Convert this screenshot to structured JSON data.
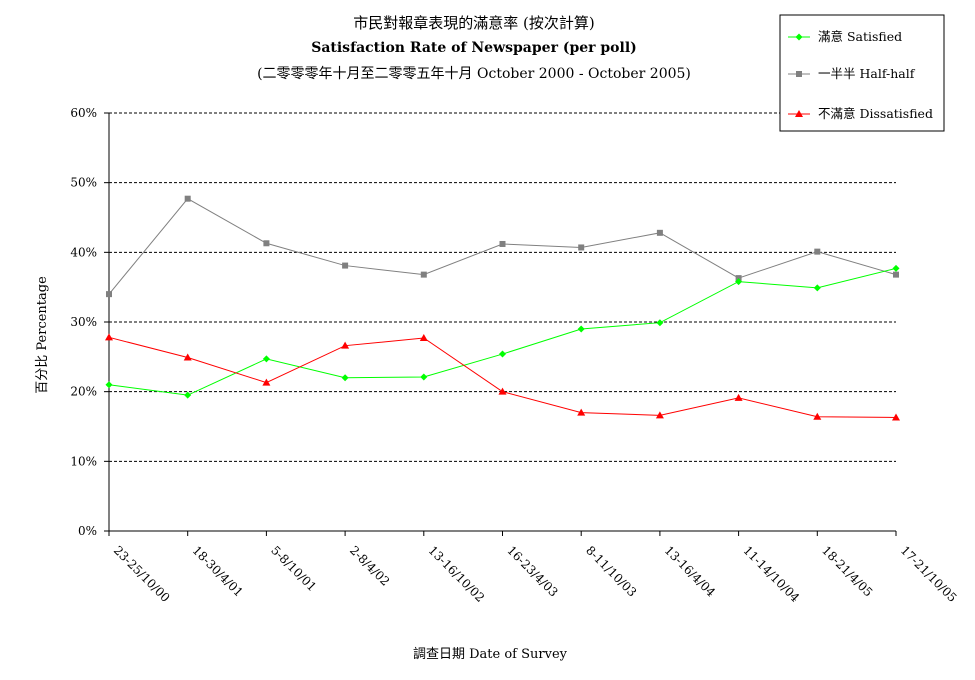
{
  "chart_data": {
    "type": "line",
    "title": "市民對報章表現的滿意率 (按次計算)",
    "subtitle": "Satisfaction Rate of Newspaper (per poll)",
    "subtitle2": "(二零零零年十月至二零零五年十月 October 2000 - October 2005)",
    "xlabel": "調查日期 Date of Survey",
    "ylabel": "百分比 Percentage",
    "ylim": [
      0,
      60
    ],
    "yticks": [
      "0%",
      "10%",
      "20%",
      "30%",
      "40%",
      "50%",
      "60%"
    ],
    "grid": true,
    "legend_position": "top-right",
    "categories": [
      "23-25/10/00",
      "18-30/4/01",
      "5-8/10/01",
      "2-8/4/02",
      "13-16/10/02",
      "16-23/4/03",
      "8-11/10/03",
      "13-16/4/04",
      "11-14/10/04",
      "18-21/4/05",
      "17-21/10/05"
    ],
    "series": [
      {
        "name": "滿意 Satisfied",
        "color": "#00ff00",
        "marker": "diamond",
        "values": [
          21.0,
          19.5,
          24.7,
          22.0,
          22.1,
          25.4,
          29.0,
          29.9,
          35.8,
          34.9,
          37.7
        ]
      },
      {
        "name": "一半半 Half-half",
        "color": "#808080",
        "marker": "square",
        "values": [
          34.0,
          47.7,
          41.3,
          38.1,
          36.8,
          41.2,
          40.7,
          42.8,
          36.3,
          40.1,
          36.8
        ]
      },
      {
        "name": "不滿意 Dissatisfied",
        "color": "#ff0000",
        "marker": "triangle",
        "values": [
          27.8,
          24.9,
          21.3,
          26.6,
          27.7,
          20.0,
          17.0,
          16.6,
          19.1,
          16.4,
          16.3
        ]
      }
    ]
  }
}
